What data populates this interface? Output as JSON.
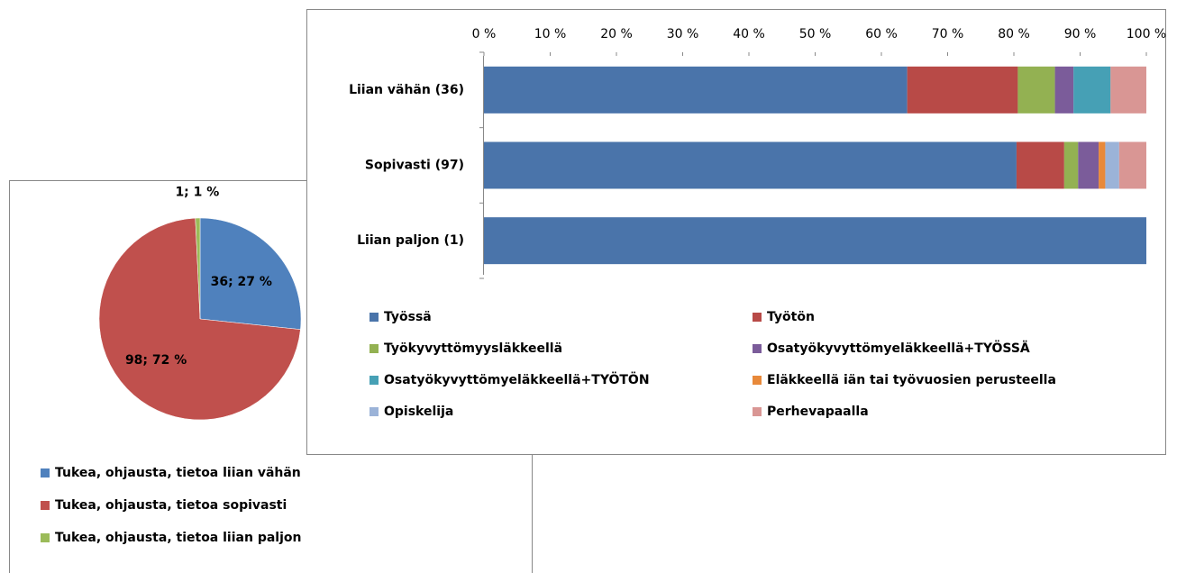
{
  "chart_data": [
    {
      "type": "pie",
      "categories": [
        "Tukea, ohjausta, tietoa liian vähän",
        "Tukea, ohjausta, tietoa sopivasti",
        "Tukea, ohjausta, tietoa liian paljon"
      ],
      "values": [
        36,
        98,
        1
      ],
      "value_labels": [
        "36; 27 %",
        "98; 72 %",
        "1; 1 %"
      ],
      "colors": [
        "#4f81bd",
        "#c0504d",
        "#9bbb59"
      ],
      "legend": "bottom"
    },
    {
      "type": "stacked_bar_horizontal",
      "categories": [
        "Liian vähän (36)",
        "Sopivasti (97)",
        "Liian paljon (1)"
      ],
      "series": [
        {
          "name": "Työssä",
          "color": "#4a74aa",
          "values": [
            63.9,
            80.4,
            100
          ]
        },
        {
          "name": "Työtön",
          "color": "#b84a47",
          "values": [
            16.7,
            7.2,
            0
          ]
        },
        {
          "name": "Työkyvyttömyysläkkeellä",
          "color": "#93b152",
          "values": [
            5.6,
            2.1,
            0
          ]
        },
        {
          "name": "Osatyökyvyttömyeläkkeellä+TYÖSSÄ",
          "color": "#7b5c9a",
          "values": [
            2.8,
            3.1,
            0
          ]
        },
        {
          "name": "Osatyökyvyttömyeläkkeellä+TYÖTÖN",
          "color": "#46a0b5",
          "values": [
            5.6,
            0,
            0
          ]
        },
        {
          "name": "Eläkkeellä iän tai työvuosien perusteella",
          "color": "#e8893a",
          "values": [
            0,
            1.0,
            0
          ]
        },
        {
          "name": "Opiskelija",
          "color": "#9bb3d8",
          "values": [
            0,
            2.1,
            0
          ]
        },
        {
          "name": "Perhevapaalla",
          "color": "#d99694",
          "values": [
            5.4,
            4.1,
            0
          ]
        }
      ],
      "xlim": [
        0,
        100
      ],
      "xticks": [
        {
          "value": 0,
          "label": "0 %"
        },
        {
          "value": 10,
          "label": "10 %"
        },
        {
          "value": 20,
          "label": "20 %"
        },
        {
          "value": 30,
          "label": "30 %"
        },
        {
          "value": 40,
          "label": "40 %"
        },
        {
          "value": 50,
          "label": "50 %"
        },
        {
          "value": 60,
          "label": "60 %"
        },
        {
          "value": 70,
          "label": "70 %"
        },
        {
          "value": 80,
          "label": "80 %"
        },
        {
          "value": 90,
          "label": "90 %"
        },
        {
          "value": 100,
          "label": "100 %"
        }
      ],
      "legend": "bottom"
    }
  ]
}
